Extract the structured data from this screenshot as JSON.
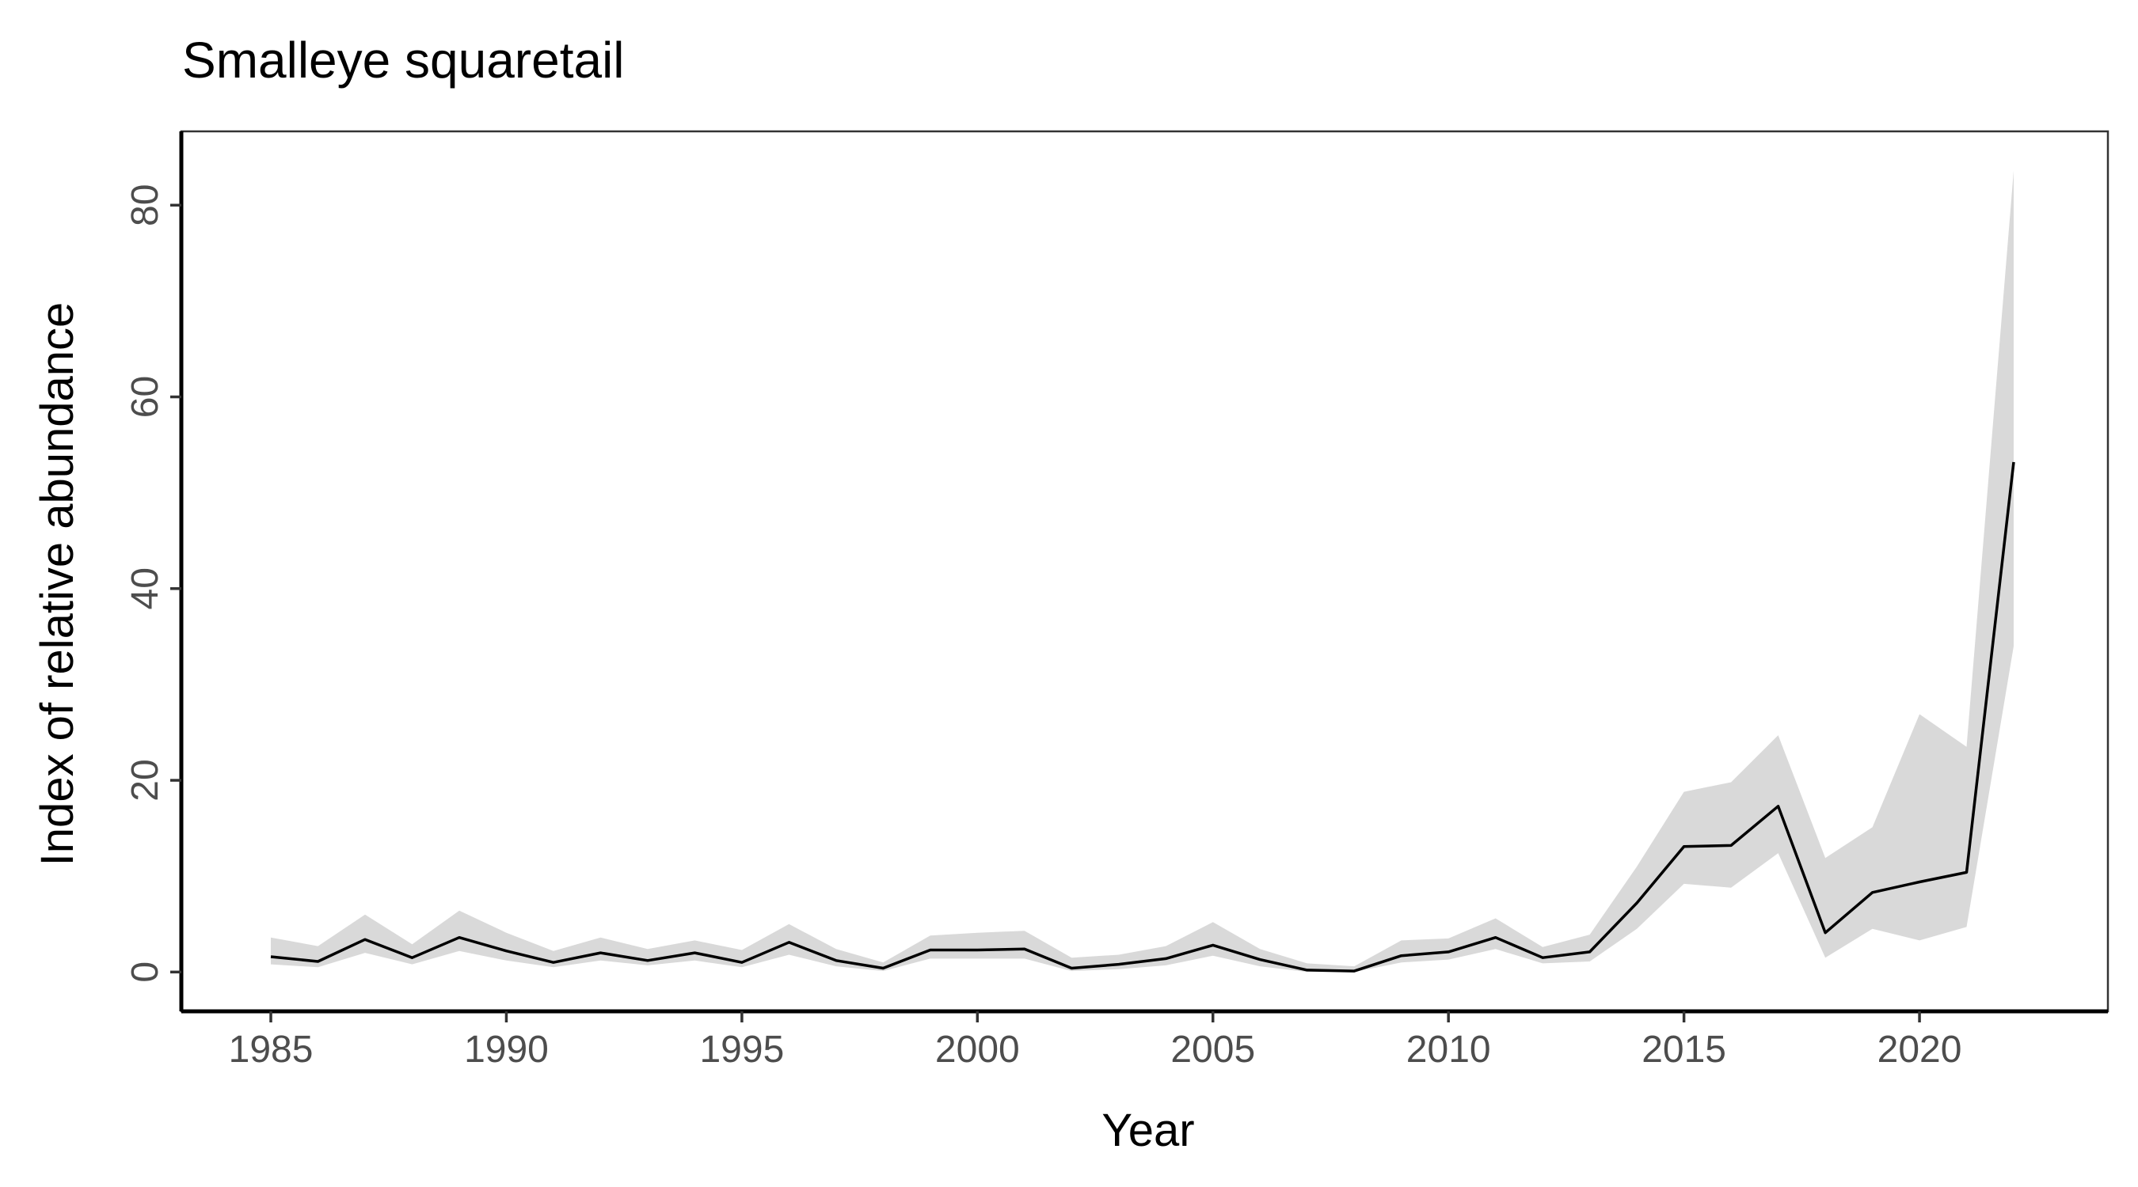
{
  "chart_data": {
    "type": "line",
    "title": "Smalleye squaretail",
    "xlabel": "Year",
    "ylabel": "Index of relative abundance",
    "xlim": [
      1983.1,
      2024.0
    ],
    "ylim": [
      -4.1,
      87.7
    ],
    "x_ticks": [
      1985,
      1990,
      1995,
      2000,
      2005,
      2010,
      2015,
      2020
    ],
    "y_ticks": [
      0,
      20,
      40,
      60,
      80
    ],
    "grid": false,
    "legend": "none",
    "series": [
      {
        "x": [
          1985,
          1986,
          1987,
          1988,
          1989,
          1990,
          1991,
          1992,
          1993,
          1994,
          1995,
          1996,
          1997,
          1998,
          1999,
          2000,
          2001,
          2002,
          2003,
          2004,
          2005,
          2006,
          2007,
          2008,
          2009,
          2010,
          2011,
          2012,
          2013,
          2014,
          2015,
          2016,
          2017,
          2018,
          2019,
          2020,
          2021,
          2022
        ],
        "values": [
          1.6,
          1.1,
          3.4,
          1.5,
          3.6,
          2.2,
          1.0,
          2.0,
          1.2,
          2.0,
          1.0,
          3.1,
          1.2,
          0.4,
          2.3,
          2.3,
          2.4,
          0.4,
          0.8,
          1.4,
          2.8,
          1.3,
          0.2,
          0.1,
          1.7,
          2.1,
          3.6,
          1.5,
          2.1,
          7.2,
          13.1,
          13.2,
          17.3,
          4.1,
          8.3,
          9.4,
          10.4,
          53.2
        ],
        "lower": [
          0.8,
          0.5,
          2.0,
          0.8,
          2.2,
          1.2,
          0.5,
          1.2,
          0.7,
          1.2,
          0.5,
          1.8,
          0.6,
          0.1,
          1.4,
          1.4,
          1.4,
          0.1,
          0.3,
          0.7,
          1.7,
          0.6,
          0.0,
          0.0,
          1.0,
          1.3,
          2.4,
          0.9,
          1.1,
          4.5,
          9.2,
          8.8,
          12.4,
          1.5,
          4.5,
          3.3,
          4.7,
          34.0
        ],
        "upper": [
          3.6,
          2.7,
          6.0,
          2.9,
          6.4,
          4.1,
          2.2,
          3.6,
          2.4,
          3.3,
          2.3,
          5.0,
          2.4,
          1.0,
          3.8,
          4.1,
          4.3,
          1.5,
          1.8,
          2.7,
          5.2,
          2.4,
          0.9,
          0.6,
          3.3,
          3.5,
          5.6,
          2.6,
          3.9,
          11.0,
          18.8,
          19.8,
          24.7,
          11.9,
          15.1,
          26.9,
          23.5,
          83.6
        ]
      }
    ],
    "colors": {
      "line": "#000000",
      "ribbon": "#d9d9d9"
    }
  }
}
